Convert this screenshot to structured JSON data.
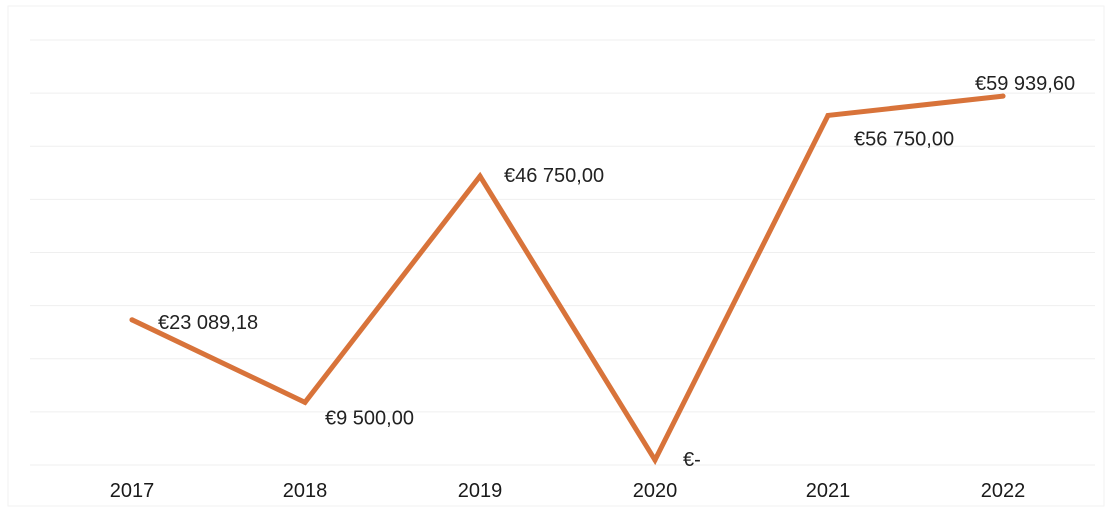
{
  "chart_data": {
    "type": "line",
    "categories": [
      "2017",
      "2018",
      "2019",
      "2020",
      "2021",
      "2022"
    ],
    "series": [
      {
        "values": [
          23089.18,
          9500.0,
          46750.0,
          0,
          56750.0,
          59939.6
        ],
        "labels": [
          "€23 089,18",
          "€9 500,00",
          "€46 750,00",
          "€-",
          "€56 750,00",
          "€59 939,60"
        ],
        "color": "#d8733a"
      }
    ],
    "title": "",
    "xlabel": "",
    "ylabel": "",
    "ylim": [
      0,
      70000
    ],
    "grid": true,
    "legend": "none"
  }
}
